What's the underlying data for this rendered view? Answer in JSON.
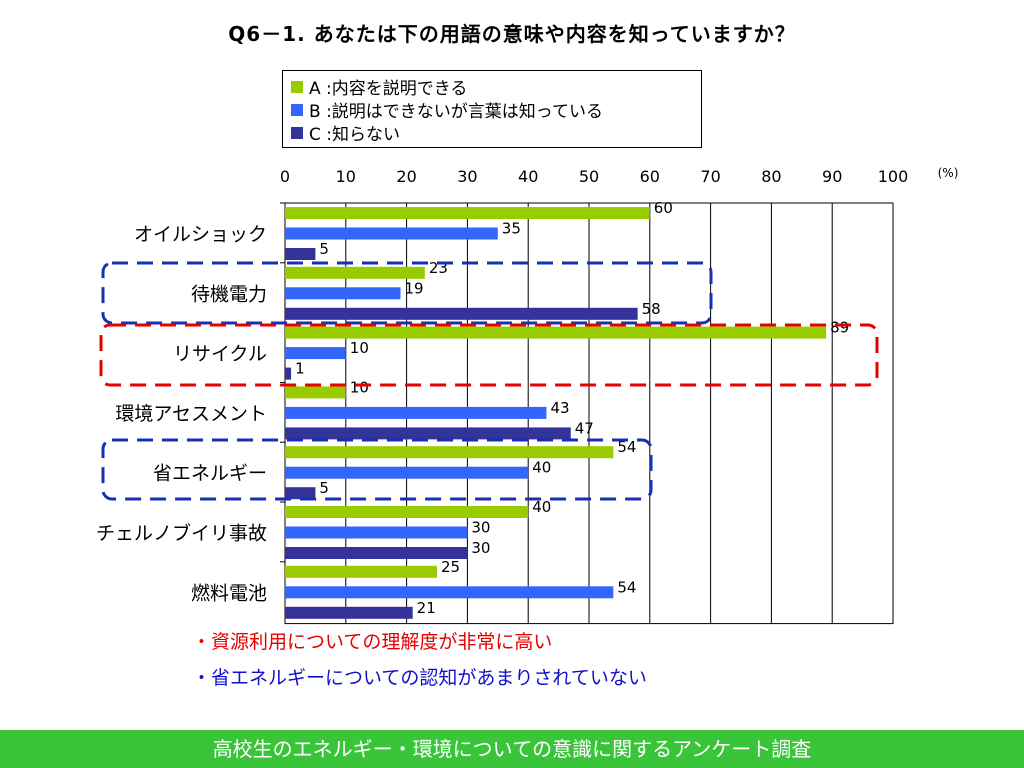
{
  "title": "Q6－1. あなたは下の用語の意味や内容を知っていますか？",
  "unit": "(%)",
  "legend": {
    "a": {
      "label": "A :内容を説明できる",
      "color": "#99cc00"
    },
    "b": {
      "label": "B :説明はできないが言葉は知っている",
      "color": "#3366ff"
    },
    "c": {
      "label": "C :知らない",
      "color": "#333399"
    }
  },
  "chart_data": {
    "type": "bar",
    "orientation": "horizontal",
    "categories": [
      "オイルショック",
      "待機電力",
      "リサイクル",
      "環境アセスメント",
      "省エネルギー",
      "チェルノブイリ事故",
      "燃料電池"
    ],
    "series": [
      {
        "name": "A :内容を説明できる",
        "color": "#99cc00",
        "values": [
          60,
          23,
          89,
          10,
          54,
          40,
          25
        ]
      },
      {
        "name": "B :説明はできないが言葉は知っている",
        "color": "#3366ff",
        "values": [
          35,
          19,
          10,
          43,
          40,
          30,
          54
        ]
      },
      {
        "name": "C :知らない",
        "color": "#333399",
        "values": [
          5,
          58,
          1,
          47,
          5,
          30,
          21
        ]
      }
    ],
    "xlim": [
      0,
      100
    ],
    "xticks": [
      0,
      10,
      20,
      30,
      40,
      50,
      60,
      70,
      80,
      90,
      100
    ],
    "grid": true,
    "legend_position": "top",
    "highlights": [
      {
        "category": "待機電力",
        "color": "#1a2fb0"
      },
      {
        "category": "リサイクル",
        "color": "#e60000"
      },
      {
        "category": "省エネルギー",
        "color": "#1a2fb0"
      }
    ]
  },
  "notes": {
    "red": "・資源利用についての理解度が非常に高い",
    "blue": "・省エネルギーについての認知があまりされていない"
  },
  "footer": "高校生のエネルギー・環境についての意識に関するアンケート調査"
}
